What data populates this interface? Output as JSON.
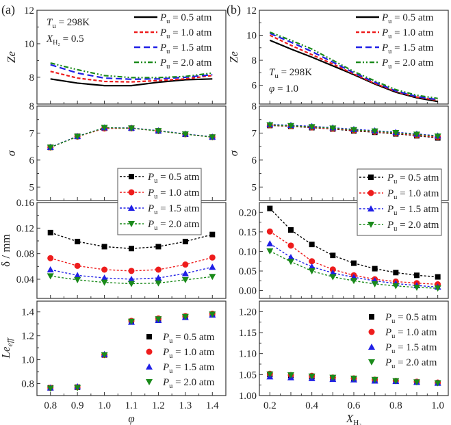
{
  "figure": {
    "panel_labels": [
      "(a)",
      "(b)"
    ],
    "series_names": [
      "Pu = 0.5 atm",
      "Pu = 1.0 atm",
      "Pu = 1.5 atm",
      "Pu = 2.0 atm"
    ],
    "series_colors": [
      "#000000",
      "#ee1c1c",
      "#1f1fe6",
      "#1a8a1a"
    ],
    "markers": [
      "square",
      "circle",
      "triangle-up",
      "triangle-down"
    ],
    "legend_text": {
      "prefix": "P",
      "sub": "u",
      "values": [
        "= 0.5 atm",
        "= 1.0 atm",
        "= 1.5 atm",
        "= 2.0 atm"
      ]
    }
  },
  "chart_data": [
    {
      "id": "a-ze",
      "type": "line",
      "panel": "a",
      "ylabel": "Ze",
      "xlabel": "",
      "xlim": [
        0.75,
        1.45
      ],
      "ylim": [
        6.4,
        12
      ],
      "xticks": [
        0.8,
        0.9,
        1.0,
        1.1,
        1.2,
        1.3,
        1.4
      ],
      "yticks": [
        8,
        10,
        12
      ],
      "ytick_labels": [
        "8",
        "10",
        "12"
      ],
      "annotations": [
        "Tu = 298K",
        "XH2 = 0.5"
      ],
      "legend": "top-right",
      "x": [
        0.8,
        0.9,
        1.0,
        1.1,
        1.2,
        1.3,
        1.4
      ],
      "series": [
        {
          "name": "Pu = 0.5 atm",
          "style": "solid",
          "values": [
            7.9,
            7.65,
            7.5,
            7.5,
            7.7,
            7.85,
            7.9
          ]
        },
        {
          "name": "Pu = 1.0 atm",
          "style": "short-dash",
          "values": [
            8.35,
            7.95,
            7.75,
            7.72,
            7.8,
            7.9,
            8.1
          ]
        },
        {
          "name": "Pu = 1.5 atm",
          "style": "long-dash",
          "values": [
            8.75,
            8.25,
            7.95,
            7.88,
            7.9,
            8.0,
            8.15
          ]
        },
        {
          "name": "Pu = 2.0 atm",
          "style": "dash-dot-dot",
          "values": [
            8.85,
            8.45,
            8.1,
            7.98,
            7.98,
            8.05,
            8.25
          ]
        }
      ]
    },
    {
      "id": "a-sigma",
      "type": "line",
      "panel": "a",
      "ylabel": "σ",
      "xlabel": "",
      "xlim": [
        0.75,
        1.45
      ],
      "ylim": [
        4.5,
        8
      ],
      "xticks": [
        0.8,
        0.9,
        1.0,
        1.1,
        1.2,
        1.3,
        1.4
      ],
      "yticks": [
        5,
        6,
        7,
        8
      ],
      "ytick_labels": [
        "5",
        "6",
        "7",
        "8"
      ],
      "legend": "bottom-right",
      "x": [
        0.8,
        0.9,
        1.0,
        1.1,
        1.2,
        1.3,
        1.4
      ],
      "series": [
        {
          "name": "Pu = 0.5 atm",
          "values": [
            6.47,
            6.88,
            7.18,
            7.18,
            7.08,
            6.96,
            6.85
          ]
        },
        {
          "name": "Pu = 1.0 atm",
          "values": [
            6.47,
            6.87,
            7.17,
            7.18,
            7.08,
            6.96,
            6.85
          ]
        },
        {
          "name": "Pu = 1.5 atm",
          "values": [
            6.48,
            6.88,
            7.2,
            7.19,
            7.09,
            6.97,
            6.86
          ]
        },
        {
          "name": "Pu = 2.0 atm",
          "values": [
            6.47,
            6.87,
            7.2,
            7.18,
            7.08,
            6.96,
            6.85
          ]
        }
      ]
    },
    {
      "id": "a-delta",
      "type": "line",
      "panel": "a",
      "ylabel": "δ / mm",
      "xlabel": "",
      "xlim": [
        0.75,
        1.45
      ],
      "ylim": [
        0.01,
        0.16
      ],
      "xticks": [
        0.8,
        0.9,
        1.0,
        1.1,
        1.2,
        1.3,
        1.4
      ],
      "yticks": [
        0.04,
        0.08,
        0.12,
        0.16
      ],
      "ytick_labels": [
        "0.04",
        "0.08",
        "0.12",
        "0.16"
      ],
      "x": [
        0.8,
        0.9,
        1.0,
        1.1,
        1.2,
        1.3,
        1.4
      ],
      "series": [
        {
          "name": "Pu = 0.5 atm",
          "values": [
            0.113,
            0.099,
            0.091,
            0.088,
            0.091,
            0.099,
            0.11
          ]
        },
        {
          "name": "Pu = 1.0 atm",
          "values": [
            0.073,
            0.061,
            0.055,
            0.053,
            0.055,
            0.063,
            0.074
          ]
        },
        {
          "name": "Pu = 1.5 atm",
          "values": [
            0.055,
            0.046,
            0.042,
            0.04,
            0.042,
            0.049,
            0.059
          ]
        },
        {
          "name": "Pu = 2.0 atm",
          "values": [
            0.045,
            0.039,
            0.035,
            0.033,
            0.034,
            0.039,
            0.044
          ]
        }
      ]
    },
    {
      "id": "a-le",
      "type": "scatter",
      "panel": "a",
      "ylabel": "Le_eff",
      "xlabel": "φ",
      "xlim": [
        0.75,
        1.45
      ],
      "ylim": [
        0.7,
        1.49
      ],
      "xticks": [
        0.8,
        0.9,
        1.0,
        1.1,
        1.2,
        1.3,
        1.4
      ],
      "xtick_labels": [
        "0.8",
        "0.9",
        "1.0",
        "1.1",
        "1.2",
        "1.3",
        "1.4"
      ],
      "yticks": [
        0.8,
        1.0,
        1.2,
        1.4
      ],
      "ytick_labels": [
        "0.8",
        "1.0",
        "1.2",
        "1.4"
      ],
      "legend": "right",
      "x": [
        0.8,
        0.9,
        1.0,
        1.1,
        1.2,
        1.3,
        1.4
      ],
      "series": [
        {
          "name": "Pu = 0.5 atm",
          "values": [
            0.765,
            0.77,
            1.04,
            1.32,
            1.34,
            1.36,
            1.38
          ]
        },
        {
          "name": "Pu = 1.0 atm",
          "values": [
            0.765,
            0.77,
            1.04,
            1.325,
            1.345,
            1.365,
            1.385
          ]
        },
        {
          "name": "Pu = 1.5 atm",
          "values": [
            0.765,
            0.775,
            1.045,
            1.315,
            1.33,
            1.355,
            1.375
          ]
        },
        {
          "name": "Pu = 2.0 atm",
          "values": [
            0.76,
            0.765,
            1.04,
            1.32,
            1.34,
            1.36,
            1.38
          ]
        }
      ]
    },
    {
      "id": "b-ze",
      "type": "line",
      "panel": "b",
      "ylabel": "Ze",
      "xlabel": "",
      "xlim": [
        0.15,
        1.05
      ],
      "ylim": [
        4.5,
        12
      ],
      "xticks": [
        0.2,
        0.3,
        0.4,
        0.5,
        0.6,
        0.7,
        0.8,
        0.9,
        1.0
      ],
      "yticks": [
        6,
        8,
        10,
        12
      ],
      "ytick_labels": [
        "6",
        "8",
        "10",
        "12"
      ],
      "annotations": [
        "Tu = 298K",
        "φ = 1.0"
      ],
      "legend": "top-right",
      "x": [
        0.2,
        0.3,
        0.4,
        0.5,
        0.6,
        0.7,
        0.8,
        0.9,
        1.0
      ],
      "series": [
        {
          "name": "Pu = 0.5 atm",
          "style": "solid",
          "values": [
            9.6,
            8.9,
            8.25,
            7.55,
            6.85,
            6.1,
            5.45,
            5.0,
            4.7
          ]
        },
        {
          "name": "Pu = 1.0 atm",
          "style": "short-dash",
          "values": [
            10.0,
            9.2,
            8.45,
            7.7,
            6.9,
            6.15,
            5.5,
            5.05,
            4.8
          ]
        },
        {
          "name": "Pu = 1.5 atm",
          "style": "long-dash",
          "values": [
            10.15,
            9.45,
            8.7,
            7.85,
            7.0,
            6.25,
            5.55,
            5.1,
            4.85
          ]
        },
        {
          "name": "Pu = 2.0 atm",
          "style": "dash-dot-dot",
          "values": [
            10.25,
            9.6,
            8.9,
            8.0,
            7.1,
            6.35,
            5.65,
            5.2,
            4.95
          ]
        }
      ]
    },
    {
      "id": "b-sigma",
      "type": "line",
      "panel": "b",
      "ylabel": "σ",
      "xlabel": "",
      "xlim": [
        0.15,
        1.05
      ],
      "ylim": [
        4.5,
        8
      ],
      "xticks": [
        0.2,
        0.3,
        0.4,
        0.5,
        0.6,
        0.7,
        0.8,
        0.9,
        1.0
      ],
      "yticks": [
        5,
        6,
        7,
        8
      ],
      "ytick_labels": [
        "5",
        "6",
        "7",
        "8"
      ],
      "legend": "bottom-right",
      "x": [
        0.2,
        0.3,
        0.4,
        0.5,
        0.6,
        0.7,
        0.8,
        0.9,
        1.0
      ],
      "series": [
        {
          "name": "Pu = 0.5 atm",
          "values": [
            7.28,
            7.25,
            7.2,
            7.15,
            7.08,
            7.03,
            6.97,
            6.9,
            6.82
          ]
        },
        {
          "name": "Pu = 1.0 atm",
          "values": [
            7.29,
            7.26,
            7.21,
            7.16,
            7.1,
            7.05,
            6.99,
            6.92,
            6.85
          ]
        },
        {
          "name": "Pu = 1.5 atm",
          "values": [
            7.32,
            7.29,
            7.25,
            7.2,
            7.14,
            7.09,
            7.03,
            6.97,
            6.9
          ]
        },
        {
          "name": "Pu = 2.0 atm",
          "values": [
            7.3,
            7.27,
            7.23,
            7.18,
            7.12,
            7.07,
            7.01,
            6.95,
            6.88
          ]
        }
      ]
    },
    {
      "id": "b-delta",
      "type": "line",
      "panel": "b",
      "ylabel": "",
      "xlabel": "",
      "xlim": [
        0.15,
        1.05
      ],
      "ylim": [
        -0.02,
        0.225
      ],
      "xticks": [
        0.2,
        0.3,
        0.4,
        0.5,
        0.6,
        0.7,
        0.8,
        0.9,
        1.0
      ],
      "yticks": [
        0.0,
        0.05,
        0.1,
        0.15,
        0.2
      ],
      "ytick_labels": [
        "0.00",
        "0.05",
        "0.10",
        "0.15",
        "0.20"
      ],
      "x": [
        0.2,
        0.3,
        0.4,
        0.5,
        0.6,
        0.7,
        0.8,
        0.9,
        1.0
      ],
      "series": [
        {
          "name": "Pu = 0.5 atm",
          "values": [
            0.21,
            0.155,
            0.118,
            0.09,
            0.07,
            0.056,
            0.046,
            0.039,
            0.035
          ]
        },
        {
          "name": "Pu = 1.0 atm",
          "values": [
            0.151,
            0.115,
            0.075,
            0.054,
            0.039,
            0.029,
            0.023,
            0.019,
            0.016
          ]
        },
        {
          "name": "Pu = 1.5 atm",
          "values": [
            0.12,
            0.085,
            0.061,
            0.045,
            0.034,
            0.025,
            0.018,
            0.013,
            0.009
          ]
        },
        {
          "name": "Pu = 2.0 atm",
          "values": [
            0.101,
            0.074,
            0.05,
            0.035,
            0.025,
            0.017,
            0.012,
            0.008,
            0.006
          ]
        }
      ]
    },
    {
      "id": "b-le",
      "type": "scatter",
      "panel": "b",
      "ylabel": "",
      "xlabel": "XH2",
      "xlim": [
        0.15,
        1.05
      ],
      "ylim": [
        1.0,
        1.225
      ],
      "xticks": [
        0.2,
        0.3,
        0.4,
        0.5,
        0.6,
        0.7,
        0.8,
        0.9,
        1.0
      ],
      "xtick_labels": [
        "0.2",
        "",
        "0.4",
        "",
        "0.6",
        "",
        "0.8",
        "",
        "1.0"
      ],
      "yticks": [
        1.0,
        1.05,
        1.1,
        1.15,
        1.2
      ],
      "ytick_labels": [
        "1.00",
        "1.05",
        "1.10",
        "1.15",
        "1.20"
      ],
      "legend": "top-right",
      "x": [
        0.2,
        0.3,
        0.4,
        0.5,
        0.6,
        0.7,
        0.8,
        0.9,
        1.0
      ],
      "series": [
        {
          "name": "Pu = 0.5 atm",
          "values": [
            1.05,
            1.048,
            1.045,
            1.042,
            1.04,
            1.036,
            1.035,
            1.032,
            1.03
          ]
        },
        {
          "name": "Pu = 1.0 atm",
          "values": [
            1.052,
            1.049,
            1.047,
            1.043,
            1.041,
            1.038,
            1.035,
            1.033,
            1.031
          ]
        },
        {
          "name": "Pu = 1.5 atm",
          "values": [
            1.045,
            1.043,
            1.041,
            1.039,
            1.038,
            1.035,
            1.034,
            1.032,
            1.03
          ]
        },
        {
          "name": "Pu = 2.0 atm",
          "values": [
            1.051,
            1.049,
            1.046,
            1.043,
            1.041,
            1.038,
            1.035,
            1.032,
            1.03
          ]
        }
      ]
    }
  ]
}
